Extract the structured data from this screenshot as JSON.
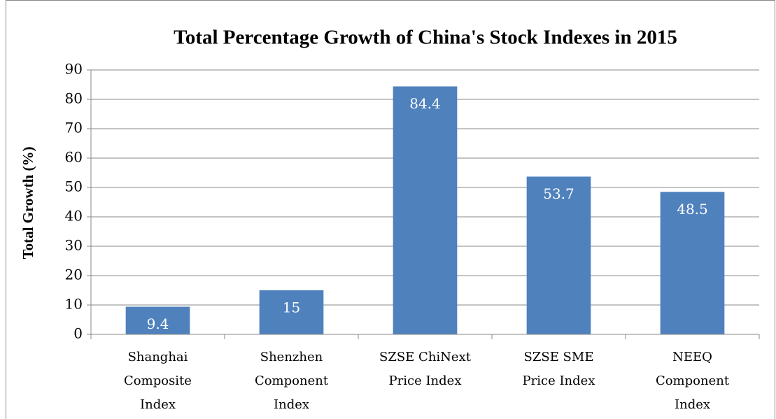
{
  "chart_data": {
    "type": "bar",
    "title": "Total Percentage Growth of China's Stock Indexes in 2015",
    "y_label": "Total Growth (%)",
    "categories": [
      "Shanghai Composite Index",
      "Shenzhen Component Index",
      "SZSE ChiNext Price Index",
      "SZSE SME Price Index",
      "NEEQ Component Index"
    ],
    "values": [
      9.4,
      15,
      84.4,
      53.7,
      48.5
    ],
    "color": "#4f81bd",
    "ylim": [
      0,
      90
    ],
    "yticks": [
      0,
      10,
      20,
      30,
      40,
      50,
      60,
      70,
      80,
      90
    ],
    "grid": true
  }
}
